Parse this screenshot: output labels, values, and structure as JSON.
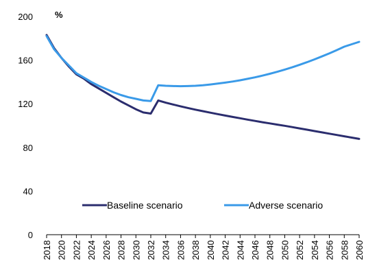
{
  "chart_data": {
    "type": "line",
    "title": "",
    "unit_label": "%",
    "xlabel": "",
    "ylabel": "",
    "ylim": [
      0,
      200
    ],
    "yticks": [
      0,
      40,
      80,
      120,
      160,
      200
    ],
    "xlim": [
      2018,
      2060
    ],
    "xticks": [
      2018,
      2020,
      2022,
      2024,
      2026,
      2028,
      2030,
      2032,
      2034,
      2036,
      2038,
      2040,
      2042,
      2044,
      2046,
      2048,
      2050,
      2052,
      2054,
      2056,
      2058,
      2060
    ],
    "grid": false,
    "legend": "bottom",
    "series": [
      {
        "name": "Baseline scenario",
        "color": "#2b2d6e",
        "x": [
          2018,
          2019,
          2020,
          2021,
          2022,
          2023,
          2024,
          2025,
          2026,
          2027,
          2028,
          2029,
          2030,
          2031,
          2032,
          2033,
          2034,
          2035,
          2036,
          2037,
          2038,
          2039,
          2040,
          2041,
          2042,
          2043,
          2044,
          2045,
          2046,
          2047,
          2048,
          2049,
          2050,
          2051,
          2052,
          2053,
          2054,
          2055,
          2056,
          2057,
          2058,
          2059,
          2060
        ],
        "values": [
          183,
          171,
          162,
          154,
          147,
          143,
          138,
          134,
          130,
          126,
          122,
          118.5,
          115,
          112,
          111,
          123,
          121,
          119.3,
          117.7,
          116.1,
          114.6,
          113.2,
          111.8,
          110.5,
          109.2,
          107.9,
          106.7,
          105.5,
          104.3,
          103.1,
          102,
          100.9,
          99.8,
          98.6,
          97.4,
          96.2,
          95,
          93.8,
          92.6,
          91.4,
          90.2,
          89,
          87.8
        ]
      },
      {
        "name": "Adverse scenario",
        "color": "#3a9ae8",
        "x": [
          2018,
          2019,
          2020,
          2021,
          2022,
          2023,
          2024,
          2025,
          2026,
          2027,
          2028,
          2029,
          2030,
          2031,
          2032,
          2033,
          2034,
          2035,
          2036,
          2037,
          2038,
          2039,
          2040,
          2041,
          2042,
          2043,
          2044,
          2045,
          2046,
          2047,
          2048,
          2049,
          2050,
          2051,
          2052,
          2053,
          2054,
          2055,
          2056,
          2057,
          2058,
          2059,
          2060
        ],
        "values": [
          182,
          170,
          162,
          155,
          148,
          144,
          140,
          136.5,
          133.5,
          130.5,
          128,
          126,
          124.5,
          123,
          122.5,
          137,
          136.5,
          136.2,
          136.1,
          136.2,
          136.5,
          137,
          137.7,
          138.5,
          139.4,
          140.4,
          141.5,
          142.8,
          144.2,
          145.8,
          147.5,
          149.3,
          151.3,
          153.4,
          155.7,
          158.1,
          160.7,
          163.4,
          166.2,
          169.2,
          172.3,
          174.5,
          176.7
        ]
      }
    ]
  }
}
